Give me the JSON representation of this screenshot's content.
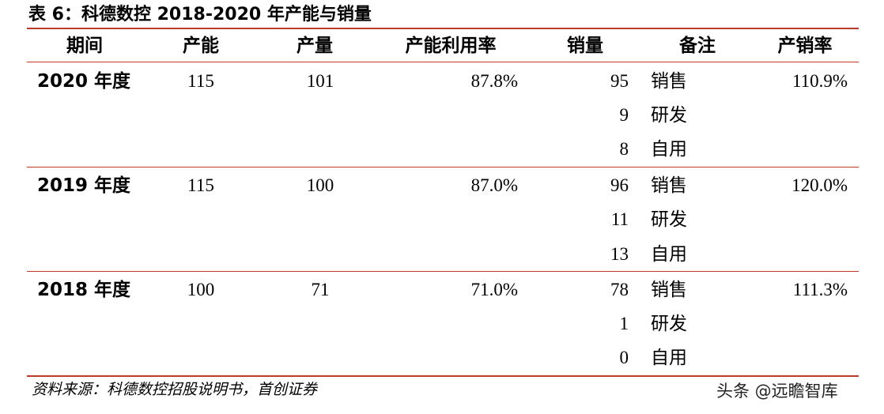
{
  "title": "表 6：科德数控 2018-2020 年产能与销量",
  "columns": [
    "期间",
    "产能",
    "产量",
    "产能利用率",
    "销量",
    "备注",
    "产销率"
  ],
  "rows": [
    {
      "period": "2020 年度",
      "capacity": "115",
      "output": "101",
      "utilization": "87.8%",
      "sales": [
        "95",
        "9",
        "8"
      ],
      "notes": [
        "销售",
        "研发",
        "自用"
      ],
      "ratio": "110.9%"
    },
    {
      "period": "2019 年度",
      "capacity": "115",
      "output": "100",
      "utilization": "87.0%",
      "sales": [
        "96",
        "11",
        "13"
      ],
      "notes": [
        "销售",
        "研发",
        "自用"
      ],
      "ratio": "120.0%"
    },
    {
      "period": "2018 年度",
      "capacity": "100",
      "output": "71",
      "utilization": "71.0%",
      "sales": [
        "78",
        "1",
        "0"
      ],
      "notes": [
        "销售",
        "研发",
        "自用"
      ],
      "ratio": "111.3%"
    }
  ],
  "source": "资料来源：科德数控招股说明书，首创证券",
  "watermark": "头条 @远瞻智库",
  "colors": {
    "rule": "#c0392b",
    "text": "#000000"
  }
}
